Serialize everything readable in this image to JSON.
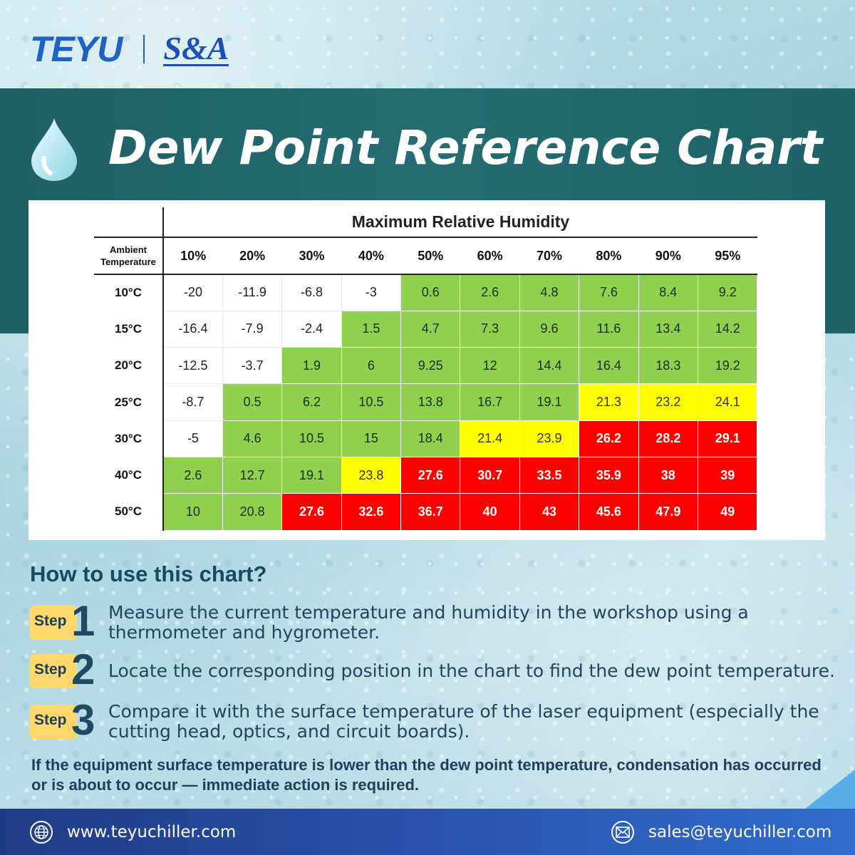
{
  "brand": {
    "logo_left": "TEYU",
    "logo_right": "S&A"
  },
  "title": "Dew Point Reference Chart",
  "chart_data": {
    "type": "table",
    "title": "Maximum Relative Humidity",
    "corner_label": "Ambient Temperature",
    "columns": [
      "10%",
      "20%",
      "30%",
      "40%",
      "50%",
      "60%",
      "70%",
      "80%",
      "90%",
      "95%"
    ],
    "rows": [
      {
        "label": "10°C",
        "values": [
          "-20",
          "-11.9",
          "-6.8",
          "-3",
          "0.6",
          "2.6",
          "4.8",
          "7.6",
          "8.4",
          "9.2"
        ],
        "colors": [
          "white",
          "white",
          "white",
          "white",
          "green",
          "green",
          "green",
          "green",
          "green",
          "green"
        ]
      },
      {
        "label": "15°C",
        "values": [
          "-16.4",
          "-7.9",
          "-2.4",
          "1.5",
          "4.7",
          "7.3",
          "9.6",
          "11.6",
          "13.4",
          "14.2"
        ],
        "colors": [
          "white",
          "white",
          "white",
          "green",
          "green",
          "green",
          "green",
          "green",
          "green",
          "green"
        ]
      },
      {
        "label": "20°C",
        "values": [
          "-12.5",
          "-3.7",
          "1.9",
          "6",
          "9.25",
          "12",
          "14.4",
          "16.4",
          "18.3",
          "19.2"
        ],
        "colors": [
          "white",
          "white",
          "green",
          "green",
          "green",
          "green",
          "green",
          "green",
          "green",
          "green"
        ]
      },
      {
        "label": "25°C",
        "values": [
          "-8.7",
          "0.5",
          "6.2",
          "10.5",
          "13.8",
          "16.7",
          "19.1",
          "21.3",
          "23.2",
          "24.1"
        ],
        "colors": [
          "white",
          "green",
          "green",
          "green",
          "green",
          "green",
          "green",
          "yellow",
          "yellow",
          "yellow"
        ]
      },
      {
        "label": "30°C",
        "values": [
          "-5",
          "4.6",
          "10.5",
          "15",
          "18.4",
          "21.4",
          "23.9",
          "26.2",
          "28.2",
          "29.1"
        ],
        "colors": [
          "white",
          "green",
          "green",
          "green",
          "green",
          "yellow",
          "yellow",
          "red",
          "red",
          "red"
        ]
      },
      {
        "label": "40°C",
        "values": [
          "2.6",
          "12.7",
          "19.1",
          "23.8",
          "27.6",
          "30.7",
          "33.5",
          "35.9",
          "38",
          "39"
        ],
        "colors": [
          "green",
          "green",
          "green",
          "yellow",
          "red",
          "red",
          "red",
          "red",
          "red",
          "red"
        ]
      },
      {
        "label": "50°C",
        "values": [
          "10",
          "20.8",
          "27.6",
          "32.6",
          "36.7",
          "40",
          "43",
          "45.6",
          "47.9",
          "49"
        ],
        "colors": [
          "green",
          "green",
          "red",
          "red",
          "red",
          "red",
          "red",
          "red",
          "red",
          "red"
        ]
      }
    ],
    "palette": {
      "white": "#ffffff",
      "green": "#8fd14f",
      "yellow": "#ffff00",
      "red": "#fe0000"
    }
  },
  "howto": {
    "heading": "How to use this chart?",
    "step_label": "Step",
    "steps": [
      {
        "num": "1",
        "text": "Measure the current temperature and humidity in the workshop using a thermometer and hygrometer."
      },
      {
        "num": "2",
        "text": "Locate the corresponding position in the chart to find the dew point temperature."
      },
      {
        "num": "3",
        "text": "Compare it with the surface temperature of the laser equipment (especially the cutting head, optics, and circuit boards)."
      }
    ],
    "note": "If the equipment surface temperature is lower than the dew point temperature, condensation has occurred or is about to occur — immediate action is required."
  },
  "footer": {
    "website": "www.teyuchiller.com",
    "email": "sales@teyuchiller.com",
    "website_icon": "globe-icon",
    "email_icon": "envelope-icon"
  }
}
